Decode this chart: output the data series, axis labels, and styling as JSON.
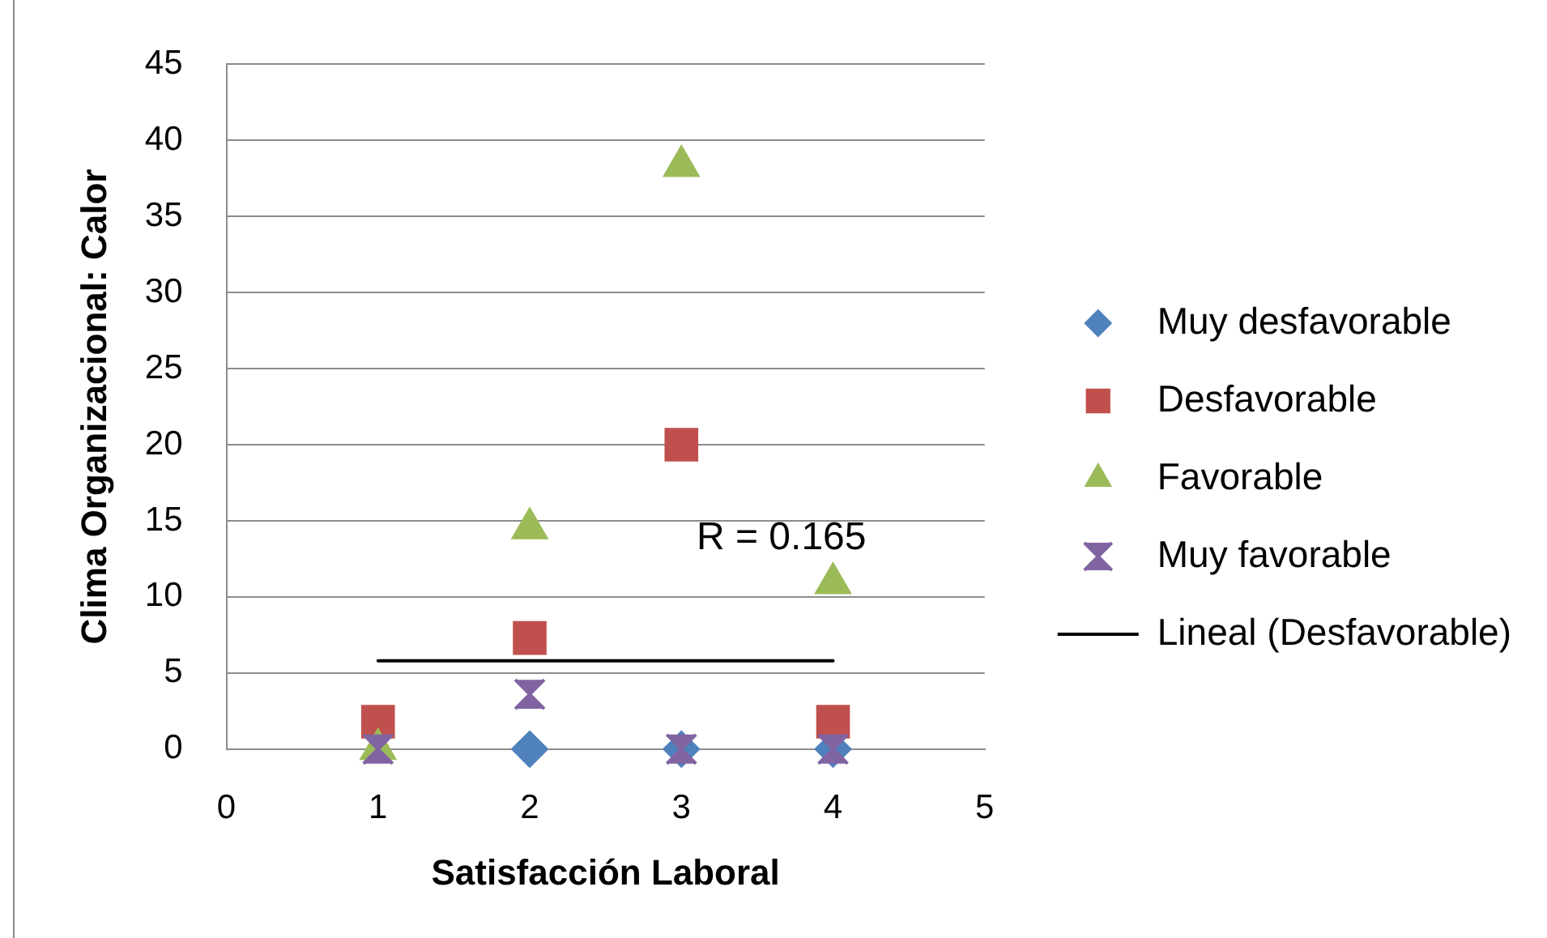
{
  "chart_data": {
    "type": "scatter",
    "xlabel": "Satisfacción Laboral",
    "ylabel": "Clima Organizacional: Calor",
    "x": [
      1,
      2,
      3,
      4
    ],
    "series": [
      {
        "name": "Muy desfavorable",
        "color": "#4f81bd",
        "marker": "diamond",
        "values": [
          null,
          0,
          0,
          0
        ]
      },
      {
        "name": "Desfavorable",
        "color": "#c0504d",
        "marker": "square",
        "values": [
          1.8,
          7.3,
          20,
          1.8
        ]
      },
      {
        "name": "Favorable",
        "color": "#9bbb59",
        "marker": "triangle",
        "values": [
          0,
          14.5,
          38.3,
          10.9
        ]
      },
      {
        "name": "Muy favorable",
        "color": "#8064a2",
        "marker": "cross",
        "values": [
          0,
          3.6,
          0,
          0
        ]
      },
      {
        "name": "Lineal (Desfavorable)",
        "type": "line",
        "color": "#000000",
        "marker": "none",
        "line_style": "solid",
        "x": [
          1,
          4
        ],
        "values": [
          5.8,
          5.8
        ]
      }
    ],
    "xlim": [
      0,
      5
    ],
    "xticks": [
      0,
      1,
      2,
      3,
      4,
      5
    ],
    "ylim": [
      0,
      45
    ],
    "yticks": [
      0,
      5,
      10,
      15,
      20,
      25,
      30,
      35,
      40,
      45
    ],
    "grid": "y",
    "legend": "right",
    "annotations": [
      "R = 0.165"
    ]
  }
}
